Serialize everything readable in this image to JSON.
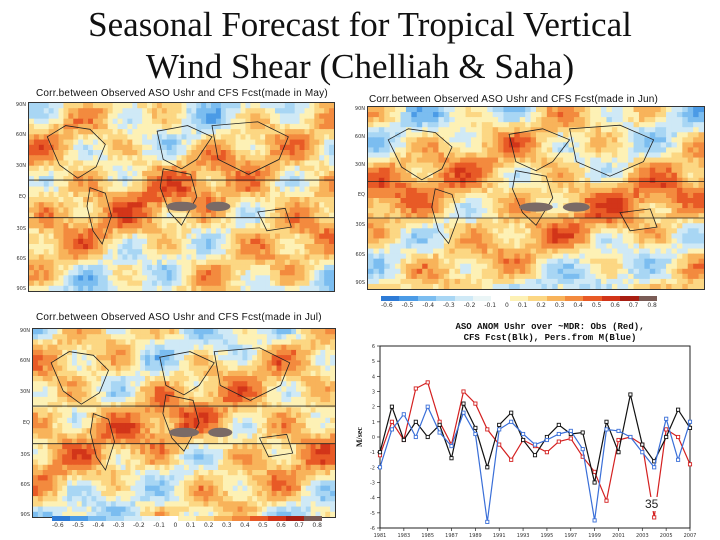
{
  "slide": {
    "title_line1": "Seasonal Forecast for Tropical Vertical",
    "title_line2": "Wind Shear (Chelliah & Saha)",
    "page_number": "35"
  },
  "maps": [
    {
      "title": "Corr.between Observed ASO Ushr and CFS Fcst(made in May)"
    },
    {
      "title": "Corr.between Observed ASO Ushr and CFS Fcst(made in Jun)"
    },
    {
      "title": "Corr.between Observed ASO Ushr and CFS Fcst(made in Jul)"
    }
  ],
  "lat_labels": [
    "90N",
    "60N",
    "30N",
    "EQ",
    "30S",
    "60S",
    "90S"
  ],
  "colorbar": {
    "labels": [
      "-0.6",
      "-0.5",
      "-0.4",
      "-0.3",
      "-0.2",
      "-0.1",
      "0",
      "0.1",
      "0.2",
      "0.3",
      "0.4",
      "0.5",
      "0.6",
      "0.7",
      "0.8"
    ],
    "colors": [
      "#2e7bd6",
      "#4b9be6",
      "#7bbdf0",
      "#a8d6f4",
      "#cfe9f6",
      "#eaf5f6",
      "#ffffff",
      "#fdf1b5",
      "#fcd783",
      "#f8b35a",
      "#f38a3e",
      "#e85a26",
      "#d23519",
      "#a81e12",
      "#7a5c56"
    ]
  },
  "chart_data": {
    "type": "line",
    "title": "ASO ANOM Ushr over ~MDR: Obs (Red),",
    "subtitle": "CFS Fcst(Blk), Pers.from M(Blue)",
    "ylabel": "M/sec",
    "xlabel": "",
    "ylim": [
      -6,
      6
    ],
    "x": [
      1981,
      1982,
      1983,
      1984,
      1985,
      1986,
      1987,
      1988,
      1989,
      1990,
      1991,
      1992,
      1993,
      1994,
      1995,
      1996,
      1997,
      1998,
      1999,
      2000,
      2001,
      2002,
      2003,
      2004,
      2005,
      2006,
      2007
    ],
    "xtick_labels": [
      "1981",
      "1983",
      "1985",
      "1987",
      "1989",
      "1991",
      "1993",
      "1995",
      "1997",
      "1999",
      "2001",
      "2003",
      "2005",
      "2007"
    ],
    "series": [
      {
        "name": "Obs",
        "color": "#d42020",
        "values": [
          -1.2,
          1.0,
          -0.2,
          3.2,
          3.6,
          1.0,
          -0.5,
          3.0,
          2.2,
          0.5,
          -0.5,
          -1.5,
          -0.2,
          -0.6,
          -1.0,
          -0.3,
          -0.1,
          -1.3,
          -2.3,
          -4.2,
          -0.2,
          0.0,
          -0.5,
          -5.3,
          0.5,
          0.0,
          -1.8
        ]
      },
      {
        "name": "CFS Fcst",
        "color": "#111111",
        "values": [
          -1.0,
          2.0,
          -0.2,
          1.0,
          0.0,
          0.8,
          -1.4,
          2.2,
          0.6,
          -2.0,
          0.8,
          1.6,
          -0.2,
          -1.2,
          0.0,
          0.8,
          0.2,
          0.3,
          -3.0,
          1.0,
          -1.0,
          2.8,
          -0.5,
          -1.6,
          0.0,
          1.8,
          0.6
        ]
      },
      {
        "name": "Pers. from M",
        "color": "#3a6fd8",
        "values": [
          -2.0,
          0.5,
          1.5,
          0.0,
          2.0,
          0.3,
          -0.6,
          1.6,
          0.2,
          -5.6,
          0.5,
          1.0,
          0.2,
          -0.5,
          -0.2,
          0.2,
          0.4,
          -0.8,
          -5.5,
          0.5,
          0.4,
          0.0,
          -1.0,
          -2.0,
          1.2,
          -1.5,
          1.0
        ]
      }
    ]
  }
}
